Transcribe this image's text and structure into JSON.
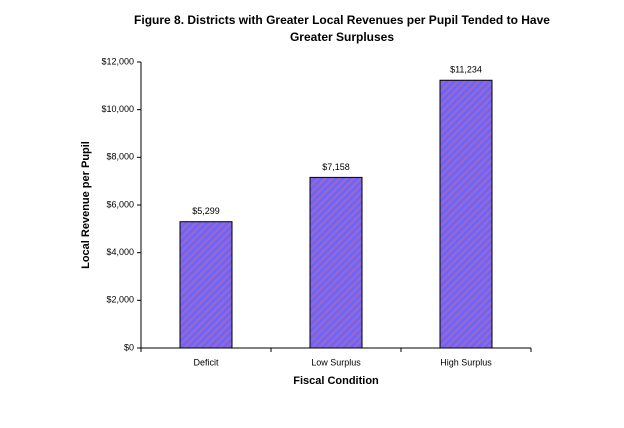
{
  "chart_data": {
    "type": "bar",
    "title": "Figure 8.  Districts with Greater Local Revenues per Pupil Tended to Have Greater Surpluses",
    "x_label": "Fiscal Condition",
    "y_label": "Local Revenue per Pupil",
    "categories": [
      "Deficit",
      "Low Surplus",
      "High Surplus"
    ],
    "values": [
      5299,
      7158,
      11234
    ],
    "value_labels": [
      "$5,299",
      "$7,158",
      "$11,234"
    ],
    "color": "#9966cc",
    "ylim": [
      0,
      12000
    ],
    "yticks": [
      {
        "value": 0,
        "label": "$0"
      },
      {
        "value": 2000,
        "label": "$2,000"
      },
      {
        "value": 4000,
        "label": "$4,000"
      },
      {
        "value": 6000,
        "label": "$6,000"
      },
      {
        "value": 8000,
        "label": "$8,000"
      },
      {
        "value": 10000,
        "label": "$10,000"
      },
      {
        "value": 12000,
        "label": "$12,000"
      }
    ],
    "grid": false
  }
}
